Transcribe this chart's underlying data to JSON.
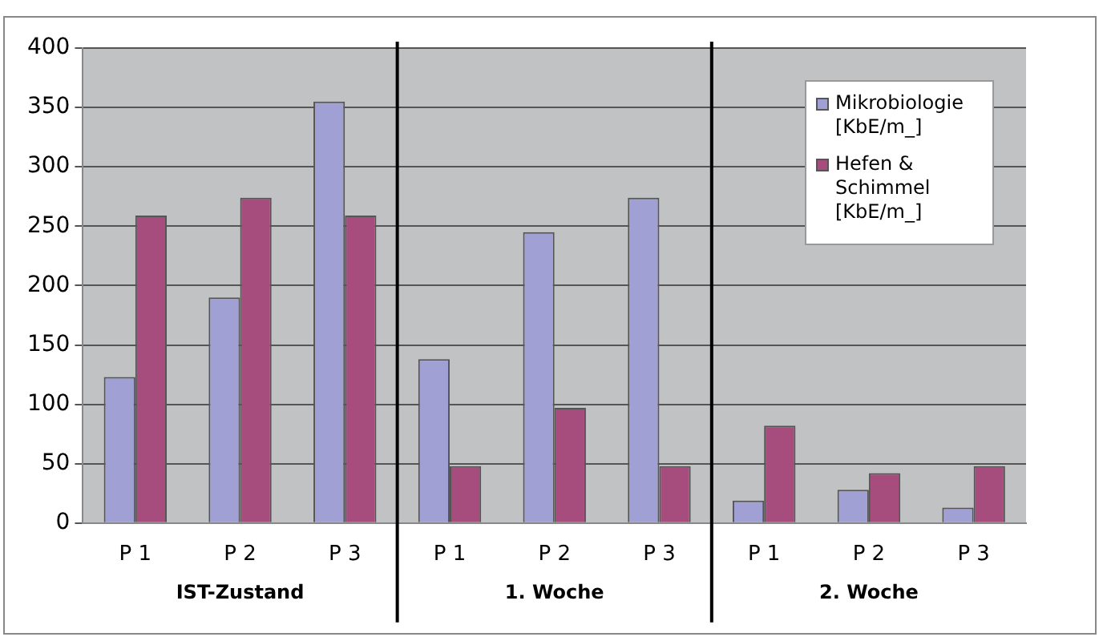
{
  "chart_data": {
    "type": "bar",
    "categories": [
      "P 1",
      "P 2",
      "P 3",
      "P 1",
      "P 2",
      "P 3",
      "P 1",
      "P 2",
      "P 3"
    ],
    "series": [
      {
        "name": "Mikrobiologie [KbE/m_]",
        "color": "#a0a0d4",
        "values": [
          123,
          190,
          355,
          138,
          245,
          274,
          19,
          28,
          13
        ]
      },
      {
        "name": "Hefen & Schimmel [KbE/m_]",
        "color": "#a64d7e",
        "values": [
          259,
          274,
          259,
          48,
          97,
          48,
          82,
          42,
          48
        ]
      }
    ],
    "ylim": [
      0,
      400
    ],
    "yticks": [
      0,
      50,
      100,
      150,
      200,
      250,
      300,
      350,
      400
    ],
    "grid": "y",
    "legend": "top right",
    "annotations": [
      "IST-Zustand",
      "1. Woche",
      "2. Woche"
    ]
  }
}
